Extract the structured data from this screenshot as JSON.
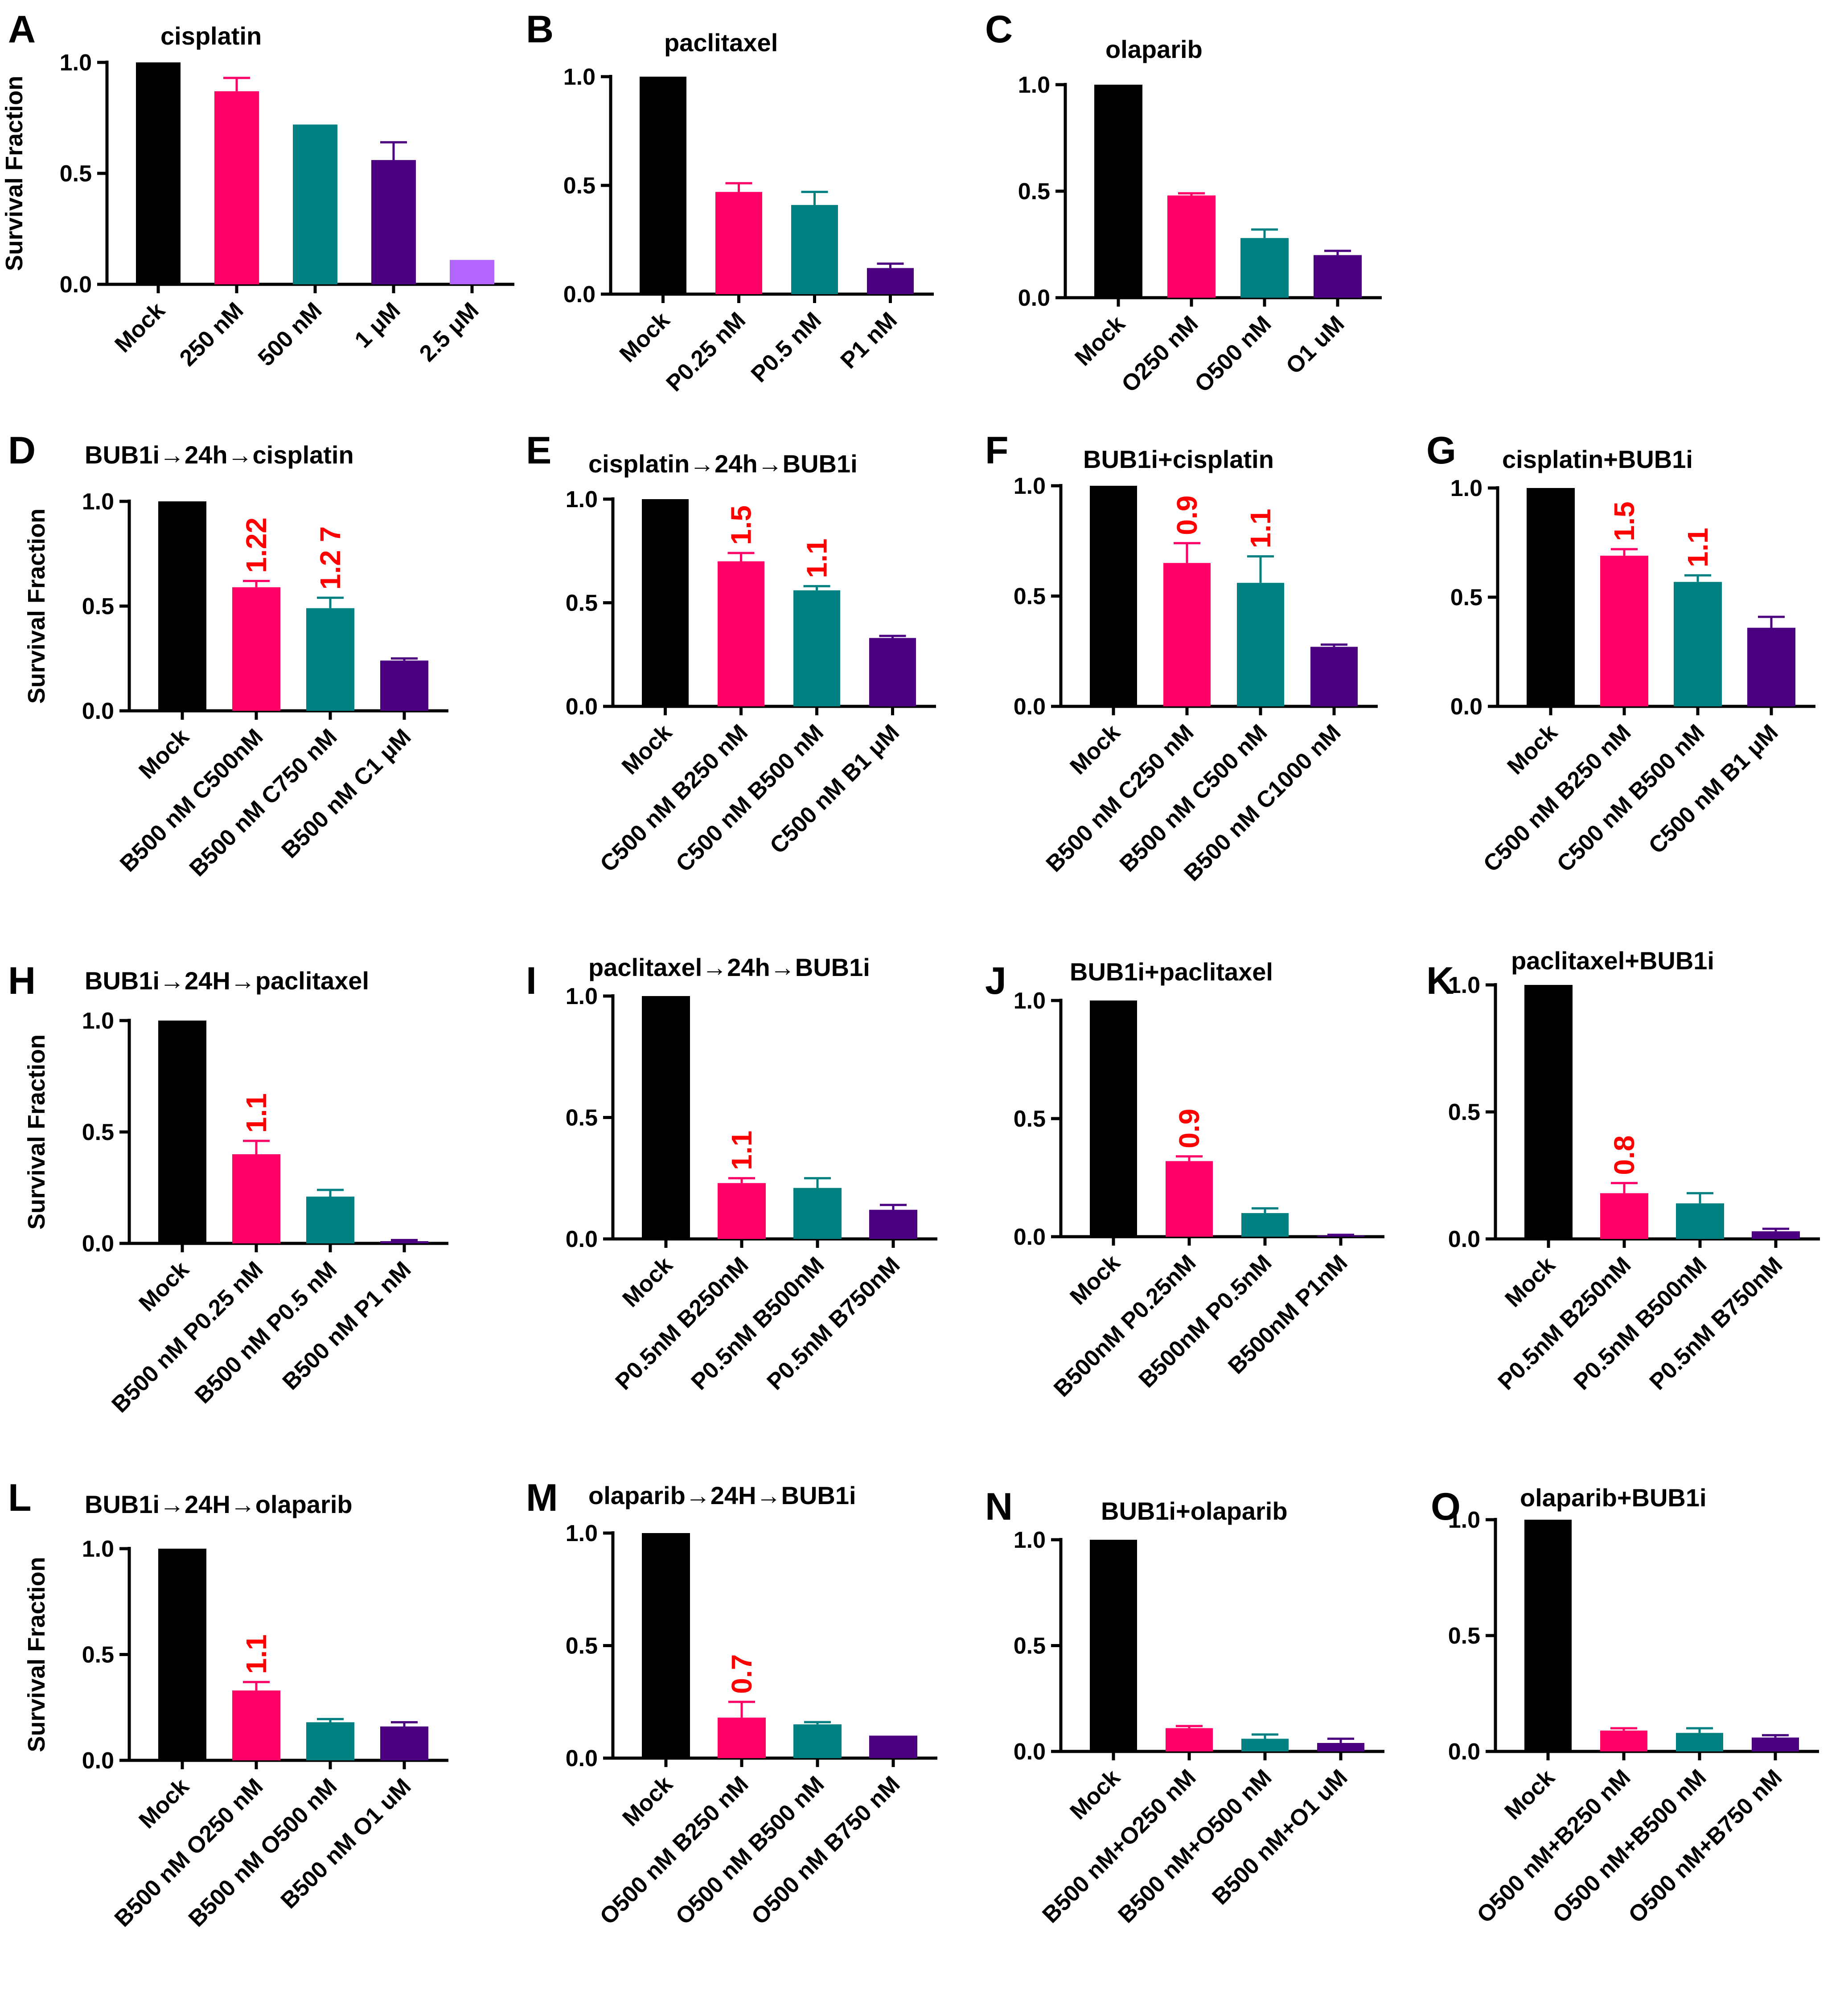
{
  "figure": {
    "ylabel_default": "Survival Fraction"
  },
  "colors": {
    "mock": "#000000",
    "pink": "#ff0066",
    "teal": "#008080",
    "purple": "#4b0082",
    "lavender": "#b266ff",
    "annotation": "#ff0000"
  },
  "chart_data": [
    {
      "id": "A",
      "panel_label": "A",
      "type": "bar",
      "title": "cisplatin",
      "ylabel": "Survival Fraction",
      "ylim": [
        0,
        1.0
      ],
      "yticks": [
        "0.0",
        "0.5",
        "1.0"
      ],
      "categories": [
        "Mock",
        "250 nM",
        "500 nM",
        "1 μM",
        "2.5 μM"
      ],
      "values": [
        1.0,
        0.87,
        0.72,
        0.56,
        0.11
      ],
      "errors": [
        0,
        0.06,
        0,
        0.08,
        0
      ],
      "colors": [
        "mock",
        "pink",
        "teal",
        "purple",
        "lavender"
      ],
      "annotations": [
        "",
        "",
        "",
        "",
        ""
      ]
    },
    {
      "id": "B",
      "panel_label": "B",
      "type": "bar",
      "title": "paclitaxel",
      "ylabel": "",
      "ylim": [
        0,
        1.0
      ],
      "yticks": [
        "0.0",
        "0.5",
        "1.0"
      ],
      "categories": [
        "Mock",
        "P0.25 nM",
        "P0.5 nM",
        "P1 nM"
      ],
      "values": [
        1.0,
        0.47,
        0.41,
        0.12
      ],
      "errors": [
        0,
        0.04,
        0.06,
        0.02
      ],
      "colors": [
        "mock",
        "pink",
        "teal",
        "purple"
      ],
      "annotations": [
        "",
        "",
        "",
        ""
      ]
    },
    {
      "id": "C",
      "panel_label": "C",
      "type": "bar",
      "title": "olaparib",
      "ylabel": "",
      "ylim": [
        0,
        1.0
      ],
      "yticks": [
        "0.0",
        "0.5",
        "1.0"
      ],
      "categories": [
        "Mock",
        "O250 nM",
        "O500 nM",
        "O1 uM"
      ],
      "values": [
        1.0,
        0.48,
        0.28,
        0.2
      ],
      "errors": [
        0,
        0.01,
        0.04,
        0.02
      ],
      "colors": [
        "mock",
        "pink",
        "teal",
        "purple"
      ],
      "annotations": [
        "",
        "",
        "",
        ""
      ]
    },
    {
      "id": "D",
      "panel_label": "D",
      "type": "bar",
      "title": "BUB1i→24h→cisplatin",
      "ylabel": "Survival Fraction",
      "ylim": [
        0,
        1.0
      ],
      "yticks": [
        "0.0",
        "0.5",
        "1.0"
      ],
      "categories": [
        "Mock",
        "B500 nM C500nM",
        "B500 nM C750 nM",
        "B500 nM C1 μM"
      ],
      "values": [
        1.0,
        0.59,
        0.49,
        0.24
      ],
      "errors": [
        0,
        0.03,
        0.05,
        0.01
      ],
      "colors": [
        "mock",
        "pink",
        "teal",
        "purple"
      ],
      "annotations": [
        "",
        "1.22",
        "1.2 7",
        ""
      ]
    },
    {
      "id": "E",
      "panel_label": "E",
      "type": "bar",
      "title": "cisplatin→24h→BUB1i",
      "ylabel": "",
      "ylim": [
        0,
        1.0
      ],
      "yticks": [
        "0.0",
        "0.5",
        "1.0"
      ],
      "categories": [
        "Mock",
        "C500 nM B250 nM",
        "C500 nM B500 nM",
        "C500 nM B1 μM"
      ],
      "values": [
        1.0,
        0.7,
        0.56,
        0.33
      ],
      "errors": [
        0,
        0.04,
        0.02,
        0.01
      ],
      "colors": [
        "mock",
        "pink",
        "teal",
        "purple"
      ],
      "annotations": [
        "",
        "1.5",
        "1.1",
        ""
      ]
    },
    {
      "id": "F",
      "panel_label": "F",
      "type": "bar",
      "title": "BUB1i+cisplatin",
      "ylabel": "",
      "ylim": [
        0,
        1.0
      ],
      "yticks": [
        "0.0",
        "0.5",
        "1.0"
      ],
      "categories": [
        "Mock",
        "B500 nM C250 nM",
        "B500 nM C500 nM",
        "B500 nM C1000 nM"
      ],
      "values": [
        1.0,
        0.65,
        0.56,
        0.27
      ],
      "errors": [
        0,
        0.09,
        0.12,
        0.01
      ],
      "colors": [
        "mock",
        "pink",
        "teal",
        "purple"
      ],
      "annotations": [
        "",
        "0.9",
        "1.1",
        ""
      ]
    },
    {
      "id": "G",
      "panel_label": "G",
      "type": "bar",
      "title": "cisplatin+BUB1i",
      "ylabel": "",
      "ylim": [
        0,
        1.0
      ],
      "yticks": [
        "0.0",
        "0.5",
        "1.0"
      ],
      "categories": [
        "Mock",
        "C500 nM B250 nM",
        "C500 nM B500 nM",
        "C500 nM B1 μM"
      ],
      "values": [
        1.0,
        0.69,
        0.57,
        0.36
      ],
      "errors": [
        0,
        0.03,
        0.03,
        0.05
      ],
      "colors": [
        "mock",
        "pink",
        "teal",
        "purple"
      ],
      "annotations": [
        "",
        "1.5",
        "1.1",
        ""
      ]
    },
    {
      "id": "H",
      "panel_label": "H",
      "type": "bar",
      "title": "BUB1i→24H→paclitaxel",
      "ylabel": "Survival Fraction",
      "ylim": [
        0,
        1.0
      ],
      "yticks": [
        "0.0",
        "0.5",
        "1.0"
      ],
      "categories": [
        "Mock",
        "B500 nM P0.25 nM",
        "B500 nM P0.5 nM",
        "B500 nM P1 nM"
      ],
      "values": [
        1.0,
        0.4,
        0.21,
        0.01
      ],
      "errors": [
        0,
        0.06,
        0.03,
        0.005
      ],
      "colors": [
        "mock",
        "pink",
        "teal",
        "purple"
      ],
      "annotations": [
        "",
        "1.1",
        "",
        ""
      ]
    },
    {
      "id": "I",
      "panel_label": "I",
      "type": "bar",
      "title": "paclitaxel→24h→BUB1i",
      "ylabel": "",
      "ylim": [
        0,
        1.0
      ],
      "yticks": [
        "0.0",
        "0.5",
        "1.0"
      ],
      "categories": [
        "Mock",
        "P0.5nM B250nM",
        "P0.5nM B500nM",
        "P0.5nM B750nM"
      ],
      "values": [
        1.0,
        0.23,
        0.21,
        0.12
      ],
      "errors": [
        0,
        0.02,
        0.04,
        0.02
      ],
      "colors": [
        "mock",
        "pink",
        "teal",
        "purple"
      ],
      "annotations": [
        "",
        "1.1",
        "",
        ""
      ]
    },
    {
      "id": "J",
      "panel_label": "J",
      "type": "bar",
      "title": "BUB1i+paclitaxel",
      "ylabel": "",
      "ylim": [
        0,
        1.0
      ],
      "yticks": [
        "0.0",
        "0.5",
        "1.0"
      ],
      "categories": [
        "Mock",
        "B500nM P0.25nM",
        "B500nM P0.5nM",
        "B500nM P1nM"
      ],
      "values": [
        1.0,
        0.32,
        0.1,
        0.005
      ],
      "errors": [
        0,
        0.02,
        0.02,
        0.003
      ],
      "colors": [
        "mock",
        "pink",
        "teal",
        "purple"
      ],
      "annotations": [
        "",
        "0.9",
        "",
        ""
      ]
    },
    {
      "id": "K",
      "panel_label": "K",
      "type": "bar",
      "title": "paclitaxel+BUB1i",
      "ylabel": "",
      "ylim": [
        0,
        1.0
      ],
      "yticks": [
        "0.0",
        "0.5",
        "1.0"
      ],
      "categories": [
        "Mock",
        "P0.5nM B250nM",
        "P0.5nM B500nM",
        "P0.5nM B750nM"
      ],
      "values": [
        1.0,
        0.18,
        0.14,
        0.03
      ],
      "errors": [
        0,
        0.04,
        0.04,
        0.01
      ],
      "colors": [
        "mock",
        "pink",
        "teal",
        "purple"
      ],
      "annotations": [
        "",
        "0.8",
        "",
        ""
      ]
    },
    {
      "id": "L",
      "panel_label": "L",
      "type": "bar",
      "title": "BUB1i→24H→olaparib",
      "ylabel": "Survival Fraction",
      "ylim": [
        0,
        1.0
      ],
      "yticks": [
        "0.0",
        "0.5",
        "1.0"
      ],
      "categories": [
        "Mock",
        "B500 nM O250 nM",
        "B500 nM O500 nM",
        "B500 nM O1 uM"
      ],
      "values": [
        1.0,
        0.33,
        0.18,
        0.16
      ],
      "errors": [
        0,
        0.04,
        0.015,
        0.02
      ],
      "colors": [
        "mock",
        "pink",
        "teal",
        "purple"
      ],
      "annotations": [
        "",
        "1.1",
        "",
        ""
      ]
    },
    {
      "id": "M",
      "panel_label": "M",
      "type": "bar",
      "title": "olaparib→24H→BUB1i",
      "ylabel": "",
      "ylim": [
        0,
        1.0
      ],
      "yticks": [
        "0.0",
        "0.5",
        "1.0"
      ],
      "categories": [
        "Mock",
        "O500 nM B250 nM",
        "O500 nM B500 nM",
        "O500 nM B750 nM"
      ],
      "values": [
        1.0,
        0.18,
        0.15,
        0.1
      ],
      "errors": [
        0,
        0.07,
        0.01,
        0
      ],
      "colors": [
        "mock",
        "pink",
        "teal",
        "purple"
      ],
      "annotations": [
        "",
        "0.7",
        "",
        ""
      ]
    },
    {
      "id": "N",
      "panel_label": "N",
      "type": "bar",
      "title": "BUB1i+olaparib",
      "ylabel": "",
      "ylim": [
        0,
        1.0
      ],
      "yticks": [
        "0.0",
        "0.5",
        "1.0"
      ],
      "categories": [
        "Mock",
        "B500 nM+O250 nM",
        "B500 nM+O500 nM",
        "B500 nM+O1 uM"
      ],
      "values": [
        1.0,
        0.11,
        0.06,
        0.04
      ],
      "errors": [
        0,
        0.01,
        0.02,
        0.02
      ],
      "colors": [
        "mock",
        "pink",
        "teal",
        "purple"
      ],
      "annotations": [
        "",
        "",
        "",
        ""
      ]
    },
    {
      "id": "O",
      "panel_label": "O",
      "type": "bar",
      "title": "olaparib+BUB1i",
      "ylabel": "",
      "ylim": [
        0,
        1.0
      ],
      "yticks": [
        "0.0",
        "0.5",
        "1.0"
      ],
      "categories": [
        "Mock",
        "O500 nM+B250 nM",
        "O500 nM+B500 nM",
        "O500 nM+B750 nM"
      ],
      "values": [
        1.0,
        0.09,
        0.08,
        0.06
      ],
      "errors": [
        0,
        0.01,
        0.02,
        0.01
      ],
      "colors": [
        "mock",
        "pink",
        "teal",
        "purple"
      ],
      "annotations": [
        "",
        "",
        "",
        ""
      ]
    }
  ]
}
